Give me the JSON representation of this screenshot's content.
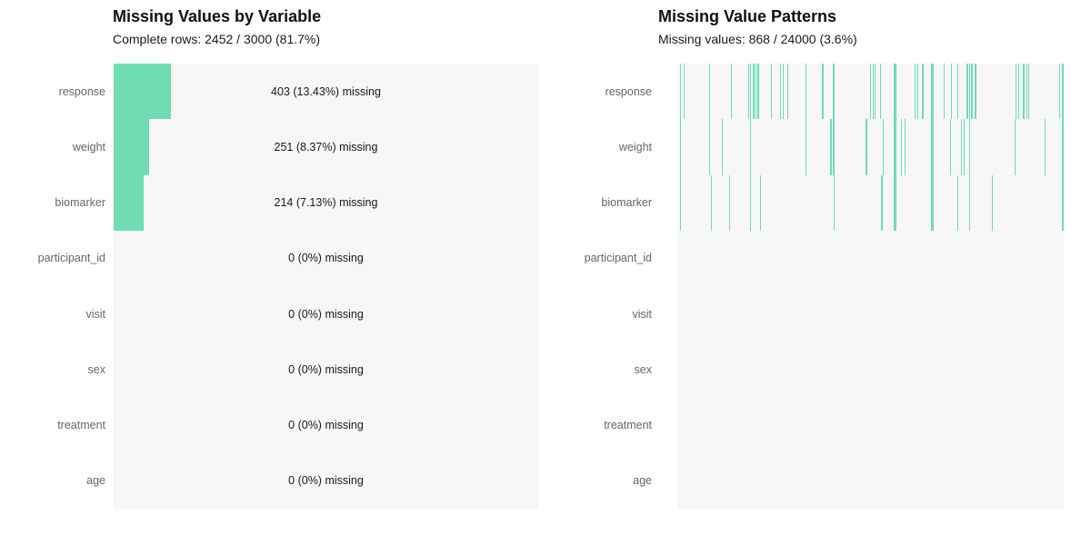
{
  "colors": {
    "missing_green": "#6fdcb3",
    "plot_background": "#f7f7f7",
    "axis_label_gray": "#666666",
    "annotation_text": "#1a1a1a",
    "title_text": "#111111"
  },
  "chart_data": [
    {
      "type": "bar",
      "orientation": "horizontal",
      "title": "Missing Values by Variable",
      "subtitle": "Complete rows: 2452 / 3000 (81.7%)",
      "complete_rows": 2452,
      "total_rows": 3000,
      "complete_pct": 81.7,
      "categories": [
        "response",
        "weight",
        "biomarker",
        "participant_id",
        "visit",
        "sex",
        "treatment",
        "age"
      ],
      "values": [
        403,
        251,
        214,
        0,
        0,
        0,
        0,
        0
      ],
      "pct_missing": [
        13.43,
        8.37,
        7.13,
        0,
        0,
        0,
        0,
        0
      ],
      "bar_labels": [
        "403 (13.43%) missing",
        "251 (8.37%) missing",
        "214 (7.13%) missing",
        "0 (0%) missing",
        "0 (0%) missing",
        "0 (0%) missing",
        "0 (0%) missing",
        "0 (0%) missing"
      ],
      "xlim": [
        0,
        3000
      ],
      "grid": false,
      "legend": "none"
    },
    {
      "type": "heatmap",
      "title": "Missing Value Patterns",
      "subtitle": "Missing values: 868 / 24000 (3.6%)",
      "missing_total": 868,
      "total_cells": 24000,
      "missing_pct": 3.6,
      "rows": [
        "response",
        "weight",
        "biomarker",
        "participant_id",
        "visit",
        "sex",
        "treatment",
        "age"
      ],
      "x_range_records": [
        0,
        3000
      ],
      "grid": false,
      "legend": "none",
      "note": "vertical tick = missing value at that record position; entries are [fraction_of_x_axis, line_width_px]",
      "missing_line_positions": {
        "response": [
          [
            0.007,
            1.3
          ],
          [
            0.016,
            1.3
          ],
          [
            0.082,
            1.3
          ],
          [
            0.139,
            1.3
          ],
          [
            0.184,
            1.3
          ],
          [
            0.188,
            1.3
          ],
          [
            0.196,
            1.3
          ],
          [
            0.202,
            1.3
          ],
          [
            0.208,
            1.3
          ],
          [
            0.242,
            1.3
          ],
          [
            0.265,
            1.3
          ],
          [
            0.273,
            1.3
          ],
          [
            0.284,
            1.3
          ],
          [
            0.331,
            1.3
          ],
          [
            0.375,
            1.3
          ],
          [
            0.402,
            2.5
          ],
          [
            0.498,
            1.3
          ],
          [
            0.506,
            1.3
          ],
          [
            0.511,
            1.3
          ],
          [
            0.524,
            1.3
          ],
          [
            0.561,
            2.5
          ],
          [
            0.613,
            1.3
          ],
          [
            0.62,
            1.3
          ],
          [
            0.634,
            1.3
          ],
          [
            0.657,
            2.5
          ],
          [
            0.689,
            1.3
          ],
          [
            0.708,
            1.3
          ],
          [
            0.725,
            1.3
          ],
          [
            0.749,
            1.3
          ],
          [
            0.755,
            1.3
          ],
          [
            0.761,
            1.3
          ],
          [
            0.77,
            1.3
          ],
          [
            0.875,
            1.3
          ],
          [
            0.882,
            1.3
          ],
          [
            0.893,
            2.5
          ],
          [
            0.904,
            1.3
          ],
          [
            0.908,
            1.3
          ],
          [
            0.988,
            1.3
          ],
          [
            0.996,
            1.3
          ]
        ],
        "weight": [
          [
            0.007,
            1.3
          ],
          [
            0.082,
            1.3
          ],
          [
            0.115,
            1.3
          ],
          [
            0.188,
            1.3
          ],
          [
            0.331,
            1.3
          ],
          [
            0.396,
            1.3
          ],
          [
            0.402,
            2.5
          ],
          [
            0.488,
            1.3
          ],
          [
            0.532,
            1.3
          ],
          [
            0.561,
            2.5
          ],
          [
            0.579,
            1.3
          ],
          [
            0.588,
            1.3
          ],
          [
            0.657,
            2.5
          ],
          [
            0.706,
            1.3
          ],
          [
            0.733,
            1.3
          ],
          [
            0.74,
            1.3
          ],
          [
            0.755,
            1.3
          ],
          [
            0.873,
            1.3
          ],
          [
            0.951,
            1.3
          ],
          [
            0.996,
            1.3
          ]
        ],
        "biomarker": [
          [
            0.007,
            1.3
          ],
          [
            0.086,
            1.3
          ],
          [
            0.134,
            1.3
          ],
          [
            0.188,
            1.3
          ],
          [
            0.214,
            1.3
          ],
          [
            0.404,
            1.8
          ],
          [
            0.528,
            1.3
          ],
          [
            0.561,
            2.5
          ],
          [
            0.657,
            2.5
          ],
          [
            0.725,
            1.3
          ],
          [
            0.755,
            1.3
          ],
          [
            0.814,
            1.3
          ],
          [
            0.996,
            1.3
          ]
        ],
        "participant_id": [],
        "visit": [],
        "sex": [],
        "treatment": [],
        "age": []
      }
    }
  ]
}
